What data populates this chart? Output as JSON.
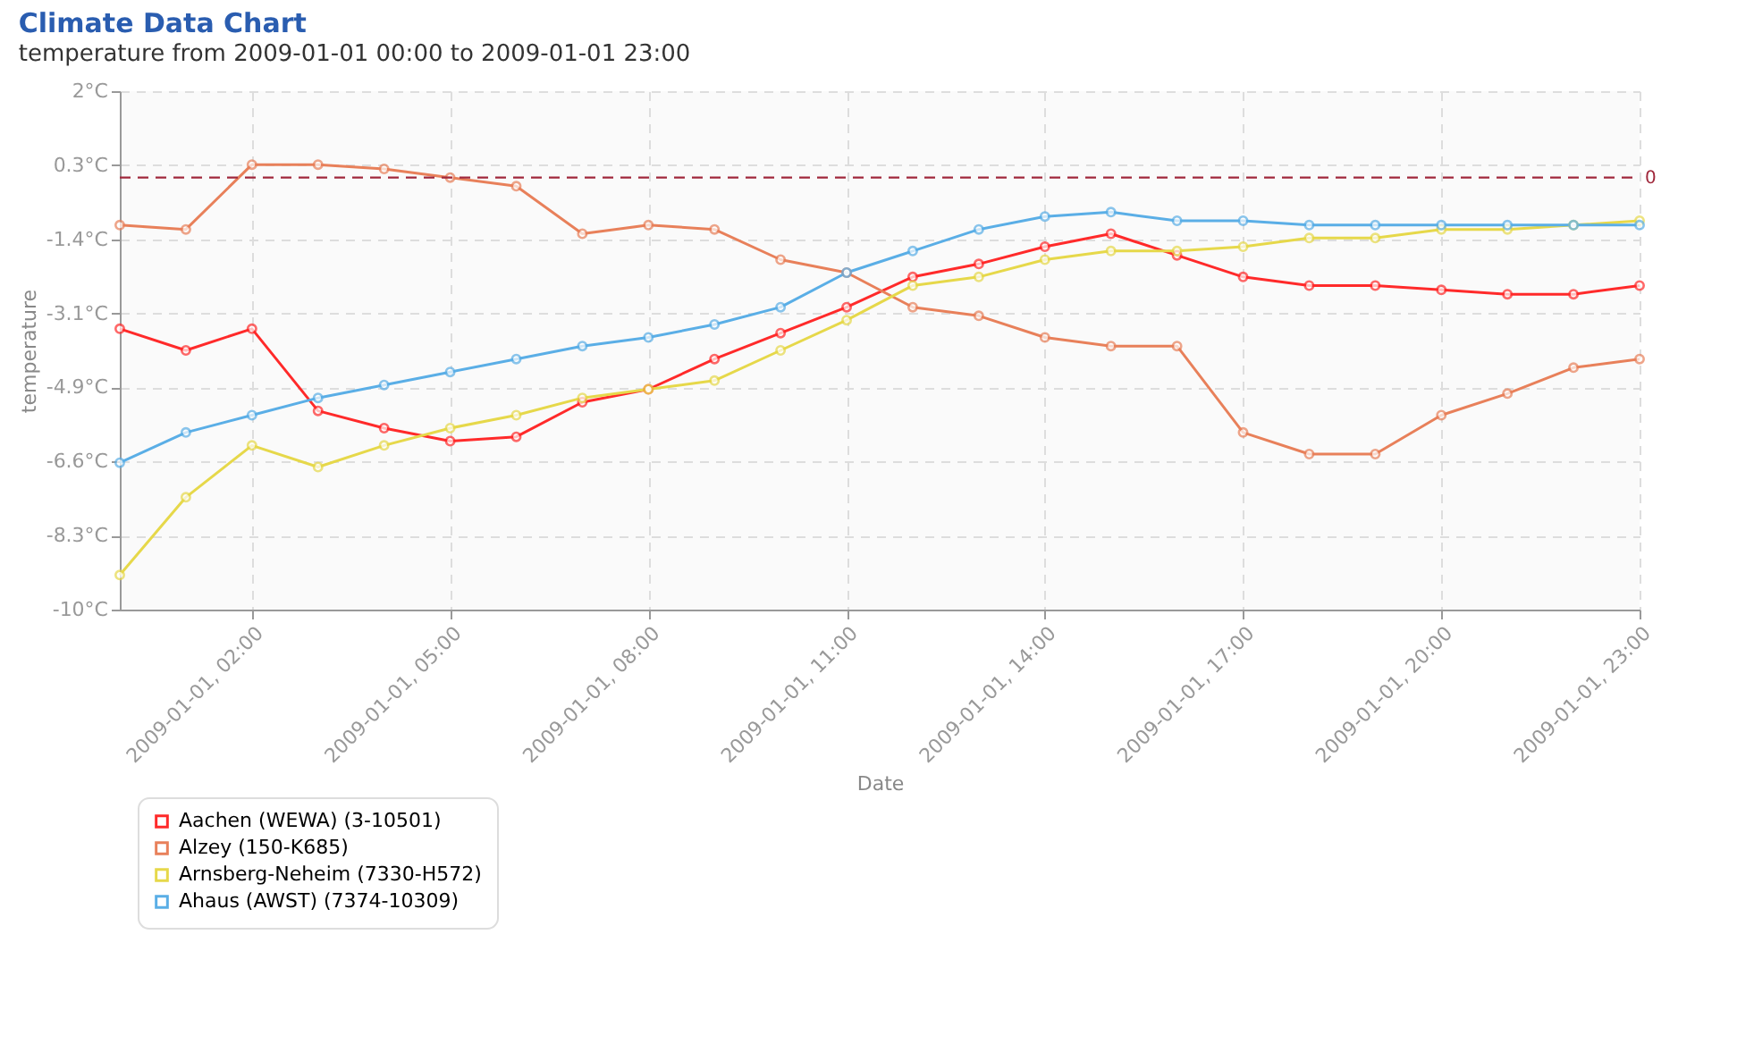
{
  "chart_data": {
    "type": "line",
    "title": "Climate Data Chart",
    "subtitle": "temperature from 2009-01-01 00:00 to 2009-01-01 23:00",
    "xlabel": "Date",
    "ylabel": "temperature",
    "x": [
      "2009-01-01T00:00",
      "2009-01-01T01:00",
      "2009-01-01T02:00",
      "2009-01-01T03:00",
      "2009-01-01T04:00",
      "2009-01-01T05:00",
      "2009-01-01T06:00",
      "2009-01-01T07:00",
      "2009-01-01T08:00",
      "2009-01-01T09:00",
      "2009-01-01T10:00",
      "2009-01-01T11:00",
      "2009-01-01T12:00",
      "2009-01-01T13:00",
      "2009-01-01T14:00",
      "2009-01-01T15:00",
      "2009-01-01T16:00",
      "2009-01-01T17:00",
      "2009-01-01T18:00",
      "2009-01-01T19:00",
      "2009-01-01T20:00",
      "2009-01-01T21:00",
      "2009-01-01T22:00",
      "2009-01-01T23:00"
    ],
    "series": [
      {
        "name": "Aachen (WEWA) (3-10501)",
        "color": "#ff2a2a",
        "values": [
          -3.5,
          -4.0,
          -3.5,
          -5.4,
          -5.8,
          -6.1,
          -6.0,
          -5.2,
          -4.9,
          -4.2,
          -3.6,
          -3.0,
          -2.3,
          -2.0,
          -1.6,
          -1.3,
          -1.8,
          -2.3,
          -2.5,
          -2.5,
          -2.6,
          -2.7,
          -2.7,
          -2.5
        ]
      },
      {
        "name": "Alzey (150-K685)",
        "color": "#e8805a",
        "values": [
          -1.1,
          -1.2,
          0.3,
          0.3,
          0.2,
          0.0,
          -0.2,
          -1.3,
          -1.1,
          -1.2,
          -1.9,
          -2.2,
          -3.0,
          -3.2,
          -3.7,
          -3.9,
          -3.9,
          -5.9,
          -6.4,
          -6.4,
          -5.5,
          -5.0,
          -4.4,
          -4.2
        ]
      },
      {
        "name": "Arnsberg-Neheim (7330-H572)",
        "color": "#e6d84a",
        "values": [
          -9.2,
          -7.4,
          -6.2,
          -6.7,
          -6.2,
          -5.8,
          -5.5,
          -5.1,
          -4.9,
          -4.7,
          -4.0,
          -3.3,
          -2.5,
          -2.3,
          -1.9,
          -1.7,
          -1.7,
          -1.6,
          -1.4,
          -1.4,
          -1.2,
          -1.2,
          -1.1,
          -1.0
        ]
      },
      {
        "name": "Ahaus (AWST) (7374-10309)",
        "color": "#5aaee6",
        "values": [
          -6.6,
          -5.9,
          -5.5,
          -5.1,
          -4.8,
          -4.5,
          -4.2,
          -3.9,
          -3.7,
          -3.4,
          -3.0,
          -2.2,
          -1.7,
          -1.2,
          -0.9,
          -0.8,
          -1.0,
          -1.0,
          -1.1,
          -1.1,
          -1.1,
          -1.1,
          -1.1,
          -1.1
        ]
      }
    ],
    "xlim": [
      "2009-01-01T00:00",
      "2009-01-01T23:00"
    ],
    "xticks": [
      {
        "value": "2009-01-01T02:00",
        "label": "2009-01-01, 02:00"
      },
      {
        "value": "2009-01-01T05:00",
        "label": "2009-01-01, 05:00"
      },
      {
        "value": "2009-01-01T08:00",
        "label": "2009-01-01, 08:00"
      },
      {
        "value": "2009-01-01T11:00",
        "label": "2009-01-01, 11:00"
      },
      {
        "value": "2009-01-01T14:00",
        "label": "2009-01-01, 14:00"
      },
      {
        "value": "2009-01-01T17:00",
        "label": "2009-01-01, 17:00"
      },
      {
        "value": "2009-01-01T20:00",
        "label": "2009-01-01, 20:00"
      },
      {
        "value": "2009-01-01T23:00",
        "label": "2009-01-01, 23:00"
      }
    ],
    "ylim": [
      -10,
      2
    ],
    "yticks": [
      {
        "value": 2,
        "label": "2°C"
      },
      {
        "value": 0.2857,
        "label": "0.3°C"
      },
      {
        "value": -1.4286,
        "label": "-1.4°C"
      },
      {
        "value": -3.1429,
        "label": "-3.1°C"
      },
      {
        "value": -4.8571,
        "label": "-4.9°C"
      },
      {
        "value": -6.5714,
        "label": "-6.6°C"
      },
      {
        "value": -8.2857,
        "label": "-8.3°C"
      },
      {
        "value": -10,
        "label": "-10°C"
      }
    ],
    "ref_lines": [
      {
        "axis": "y",
        "value": 0,
        "label": "0",
        "color": "#a0283c",
        "line_style": "dashed"
      }
    ],
    "grid": true,
    "legend": "bottom left",
    "marker": "circle",
    "line_style": "solid"
  }
}
